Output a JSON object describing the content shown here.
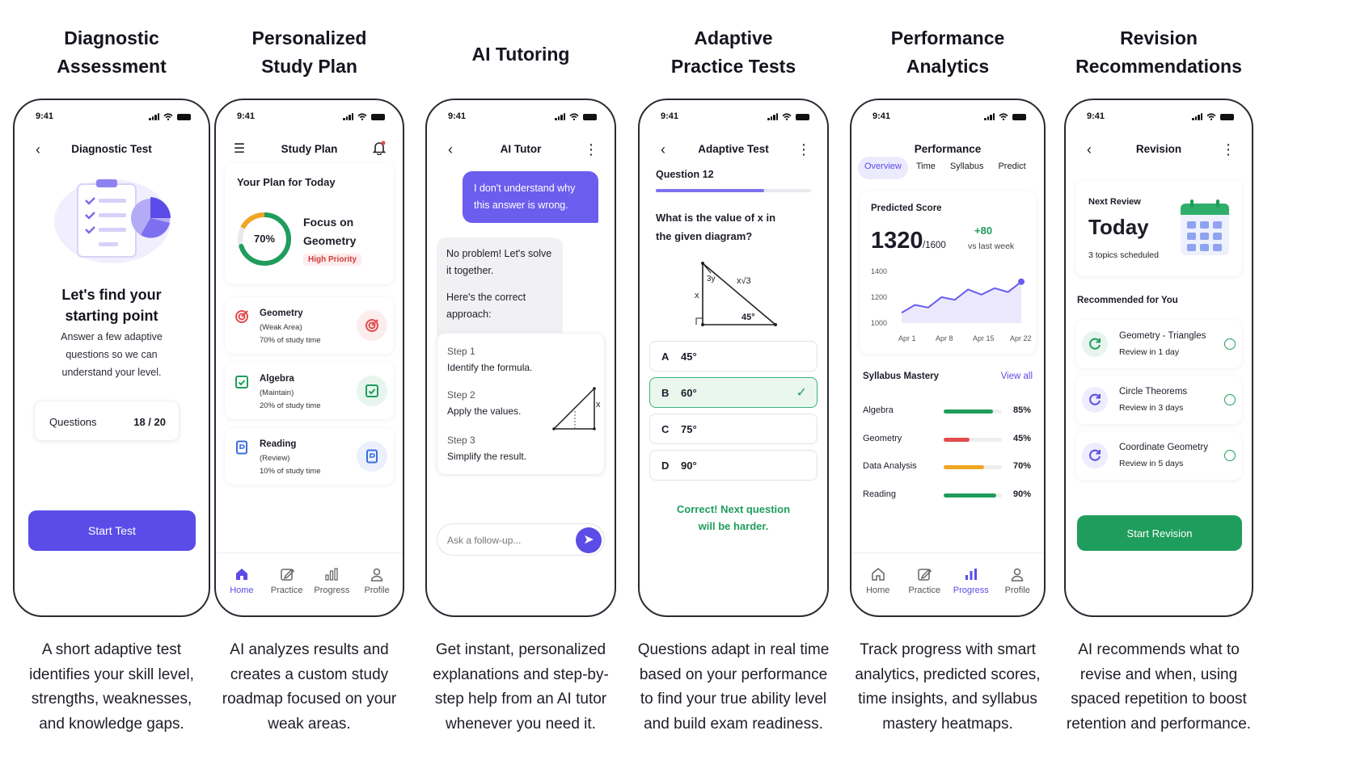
{
  "colors": {
    "primary": "#5b4ce8",
    "green": "#1f9d5c",
    "red": "#e24b4b",
    "orange": "#f0a523"
  },
  "status_time": "9:41",
  "columns": [
    {
      "title": [
        "Diagnostic",
        "Assessment"
      ],
      "desc": [
        "A short adaptive test",
        "identifies your skill level,",
        "strengths, weaknesses,",
        "and knowledge gaps."
      ]
    },
    {
      "title": [
        "Personalized",
        "Study Plan"
      ],
      "desc": [
        "AI analyzes results and",
        "creates a custom study",
        "roadmap focused on your",
        "weak areas."
      ]
    },
    {
      "title": [
        "AI Tutoring"
      ],
      "desc": [
        "Get instant, personalized",
        "explanations and step-by-",
        "step help from an AI tutor",
        "whenever you need it."
      ]
    },
    {
      "title": [
        "Adaptive",
        "Practice Tests"
      ],
      "desc": [
        "Questions adapt in real time",
        "based on your performance",
        "to find your true ability level",
        "and build exam readiness."
      ]
    },
    {
      "title": [
        "Performance",
        "Analytics"
      ],
      "desc": [
        "Track progress with smart",
        "analytics, predicted scores,",
        "time insights, and syllabus",
        "mastery heatmaps."
      ]
    },
    {
      "title": [
        "Revision",
        "Recommendations"
      ],
      "desc": [
        "AI recommends what to",
        "revise and when, using",
        "spaced repetition to boost",
        "retention and performance."
      ]
    }
  ],
  "diag": {
    "header": "Diagnostic Test",
    "heading": [
      "Let's find your",
      "starting point"
    ],
    "body": [
      "Answer a few adaptive",
      "questions so we can",
      "understand your level."
    ],
    "questions_label": "Questions",
    "questions_value": "18 / 20",
    "start": "Start Test",
    "illustration": "checklist-pie-icon"
  },
  "plan": {
    "header": "Study Plan",
    "card_title": "Your Plan for Today",
    "ring_value": "70%",
    "ring_fraction": 0.7,
    "focus": [
      "Focus on",
      "Geometry"
    ],
    "priority": "High Priority",
    "items": [
      {
        "name": "Geometry",
        "tag": "(Weak Area)",
        "time": "70% of study time",
        "icon": "target-icon",
        "color": "#e24b4b"
      },
      {
        "name": "Algebra",
        "tag": "(Maintain)",
        "time": "20% of study time",
        "icon": "checklist-icon",
        "color": "#1f9d5c"
      },
      {
        "name": "Reading",
        "tag": "(Review)",
        "time": "10% of study time",
        "icon": "bookmark-icon",
        "color": "#3b6de0"
      }
    ],
    "nav": [
      {
        "label": "Home",
        "icon": "home-icon",
        "active": true
      },
      {
        "label": "Practice",
        "icon": "edit-icon",
        "active": false
      },
      {
        "label": "Progress",
        "icon": "bar-chart-icon",
        "active": false
      },
      {
        "label": "Profile",
        "icon": "user-icon",
        "active": false
      }
    ]
  },
  "tutor": {
    "header": "AI Tutor",
    "user_msg": [
      "I don't understand why",
      "this answer is wrong."
    ],
    "bot_msg1": [
      "No problem! Let's solve",
      "it together."
    ],
    "bot_msg2": [
      "Here's the correct",
      "approach:"
    ],
    "steps": [
      {
        "label": "Step 1",
        "text": "Identify the formula."
      },
      {
        "label": "Step 2",
        "text": "Apply the values."
      },
      {
        "label": "Step 3",
        "text": "Simplify the result."
      }
    ],
    "step_diagram_label": "x",
    "input_placeholder": "Ask a follow-up..."
  },
  "test": {
    "header": "Adaptive Test",
    "question_no": "Question 12",
    "progress": 0.7,
    "question": [
      "What is the value of x in",
      "the given diagram?"
    ],
    "diagram": {
      "side_a": "3y",
      "side_b": "x√3",
      "side_c": "x",
      "angle": "45°"
    },
    "options": [
      {
        "letter": "A",
        "text": "45°",
        "correct": false
      },
      {
        "letter": "B",
        "text": "60°",
        "correct": true
      },
      {
        "letter": "C",
        "text": "75°",
        "correct": false
      },
      {
        "letter": "D",
        "text": "90°",
        "correct": false
      }
    ],
    "feedback": [
      "Correct! Next question",
      "will be harder."
    ]
  },
  "perf": {
    "header": "Performance",
    "tabs": [
      "Overview",
      "Time",
      "Syllabus",
      "Predict"
    ],
    "active_tab": "Overview",
    "predicted_label": "Predicted Score",
    "score": "1320",
    "score_max": "/1600",
    "delta": "+80",
    "delta_label": "vs last week",
    "chart_data": {
      "type": "line",
      "y_ticks": [
        "1400",
        "1200",
        "1000"
      ],
      "x_ticks": [
        "Apr 1",
        "Apr 8",
        "Apr 15",
        "Apr 22"
      ],
      "ylim": [
        1000,
        1400
      ],
      "values": [
        1080,
        1140,
        1120,
        1200,
        1180,
        1260,
        1220,
        1270,
        1240,
        1320
      ]
    },
    "mastery_title": "Syllabus Mastery",
    "view_all": "View all",
    "mastery": [
      {
        "name": "Algebra",
        "pct": "85%",
        "value": 0.85,
        "color": "#1f9d5c"
      },
      {
        "name": "Geometry",
        "pct": "45%",
        "value": 0.45,
        "color": "#e24b4b"
      },
      {
        "name": "Data Analysis",
        "pct": "70%",
        "value": 0.7,
        "color": "#f0a523"
      },
      {
        "name": "Reading",
        "pct": "90%",
        "value": 0.9,
        "color": "#1f9d5c"
      }
    ],
    "nav": [
      {
        "label": "Home",
        "icon": "home-icon",
        "active": false
      },
      {
        "label": "Practice",
        "icon": "edit-icon",
        "active": false
      },
      {
        "label": "Progress",
        "icon": "bar-chart-icon",
        "active": true
      },
      {
        "label": "Profile",
        "icon": "user-icon",
        "active": false
      }
    ]
  },
  "rev": {
    "header": "Revision",
    "next_label": "Next Review",
    "next_value": "Today",
    "scheduled": "3 topics scheduled",
    "rec_title": "Recommended for You",
    "items": [
      {
        "name": "Geometry - Triangles",
        "when": "Review in 1 day",
        "color": "#1f9d5c"
      },
      {
        "name": "Circle Theorems",
        "when": "Review in 3 days",
        "color": "#5b4ce8"
      },
      {
        "name": "Coordinate Geometry",
        "when": "Review in 5 days",
        "color": "#5b4ce8"
      }
    ],
    "start": "Start Revision"
  }
}
